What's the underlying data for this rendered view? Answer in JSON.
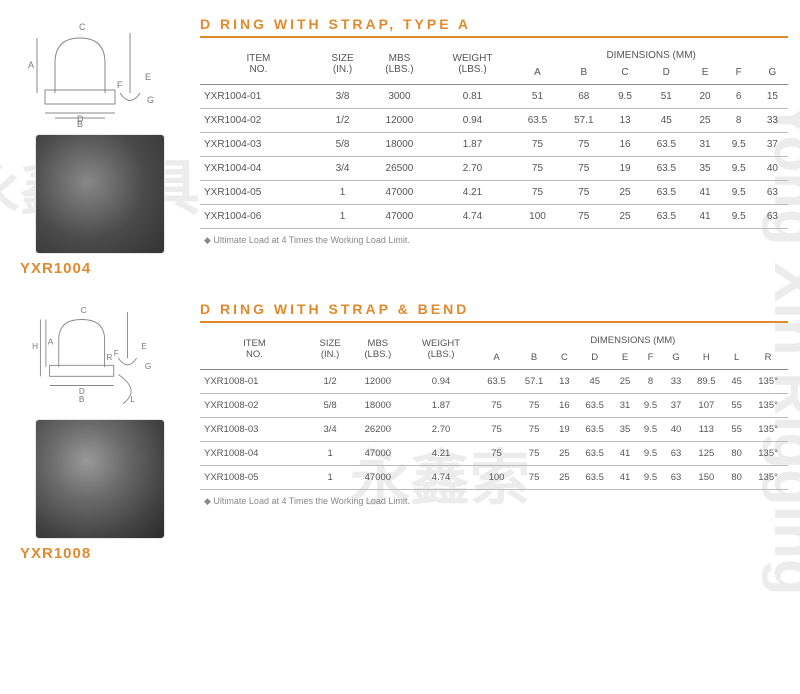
{
  "watermarks": [
    "永鑫索具"
  ],
  "colors": {
    "accent": "#e08a2e",
    "text": "#555555",
    "line": "#888888"
  },
  "section1": {
    "title": "D RING WITH STRAP, TYPE A",
    "product_code": "YXR1004",
    "dim_label_letters": [
      "A",
      "B",
      "C",
      "D",
      "E",
      "F",
      "G"
    ],
    "headers": {
      "item": "ITEM\nNO.",
      "size": "SIZE\n(IN.)",
      "mbs": "MBS\n(LBS.)",
      "weight": "WEIGHT\n(LBS.)",
      "dimensions": "DIMENSIONS (MM)",
      "dims": [
        "A",
        "B",
        "C",
        "D",
        "E",
        "F",
        "G"
      ]
    },
    "rows": [
      {
        "item": "YXR1004-01",
        "size": "3/8",
        "mbs": "3000",
        "weight": "0.81",
        "d": [
          "51",
          "68",
          "9.5",
          "51",
          "20",
          "6",
          "15"
        ]
      },
      {
        "item": "YXR1004-02",
        "size": "1/2",
        "mbs": "12000",
        "weight": "0.94",
        "d": [
          "63.5",
          "57.1",
          "13",
          "45",
          "25",
          "8",
          "33"
        ]
      },
      {
        "item": "YXR1004-03",
        "size": "5/8",
        "mbs": "18000",
        "weight": "1.87",
        "d": [
          "75",
          "75",
          "16",
          "63.5",
          "31",
          "9.5",
          "37"
        ]
      },
      {
        "item": "YXR1004-04",
        "size": "3/4",
        "mbs": "26500",
        "weight": "2.70",
        "d": [
          "75",
          "75",
          "19",
          "63.5",
          "35",
          "9.5",
          "40"
        ]
      },
      {
        "item": "YXR1004-05",
        "size": "1",
        "mbs": "47000",
        "weight": "4.21",
        "d": [
          "75",
          "75",
          "25",
          "63.5",
          "41",
          "9.5",
          "63"
        ]
      },
      {
        "item": "YXR1004-06",
        "size": "1",
        "mbs": "47000",
        "weight": "4.74",
        "d": [
          "100",
          "75",
          "25",
          "63.5",
          "41",
          "9.5",
          "63"
        ]
      }
    ],
    "footnote": "Ultimate Load at 4 Times the Working Load Limit."
  },
  "section2": {
    "title": "D RING WITH STRAP & BEND",
    "product_code": "YXR1008",
    "dim_label_letters": [
      "A",
      "B",
      "C",
      "D",
      "E",
      "F",
      "G",
      "H",
      "L",
      "R"
    ],
    "headers": {
      "item": "ITEM\nNO.",
      "size": "SIZE\n(IN.)",
      "mbs": "MBS\n(LBS.)",
      "weight": "WEIGHT\n(LBS.)",
      "dimensions": "DIMENSIONS (MM)",
      "dims": [
        "A",
        "B",
        "C",
        "D",
        "E",
        "F",
        "G",
        "H",
        "L",
        "R"
      ]
    },
    "rows": [
      {
        "item": "YXR1008-01",
        "size": "1/2",
        "mbs": "12000",
        "weight": "0.94",
        "d": [
          "63.5",
          "57.1",
          "13",
          "45",
          "25",
          "8",
          "33",
          "89.5",
          "45",
          "135°"
        ]
      },
      {
        "item": "YXR1008-02",
        "size": "5/8",
        "mbs": "18000",
        "weight": "1.87",
        "d": [
          "75",
          "75",
          "16",
          "63.5",
          "31",
          "9.5",
          "37",
          "107",
          "55",
          "135°"
        ]
      },
      {
        "item": "YXR1008-03",
        "size": "3/4",
        "mbs": "26200",
        "weight": "2.70",
        "d": [
          "75",
          "75",
          "19",
          "63.5",
          "35",
          "9.5",
          "40",
          "113",
          "55",
          "135°"
        ]
      },
      {
        "item": "YXR1008-04",
        "size": "1",
        "mbs": "47000",
        "weight": "4.21",
        "d": [
          "75",
          "75",
          "25",
          "63.5",
          "41",
          "9.5",
          "63",
          "125",
          "80",
          "135°"
        ]
      },
      {
        "item": "YXR1008-05",
        "size": "1",
        "mbs": "47000",
        "weight": "4.74",
        "d": [
          "100",
          "75",
          "25",
          "63.5",
          "41",
          "9.5",
          "63",
          "150",
          "80",
          "135°"
        ]
      }
    ],
    "footnote": "Ultimate Load at 4 Times the Working Load Limit."
  }
}
